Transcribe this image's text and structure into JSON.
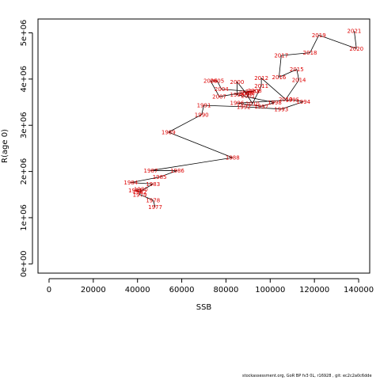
{
  "chart_data": {
    "type": "scatter",
    "title": "",
    "xlabel": "SSB",
    "ylabel": "R(age 0)",
    "xlim": [
      -5000,
      145000
    ],
    "ylim": [
      -200000,
      5300000
    ],
    "x_ticks": [
      0,
      20000,
      40000,
      60000,
      80000,
      100000,
      120000,
      140000
    ],
    "x_tick_labels": [
      "0",
      "20000",
      "40000",
      "60000",
      "80000",
      "100000",
      "120000",
      "140000"
    ],
    "y_ticks": [
      0,
      1000000,
      2000000,
      3000000,
      4000000,
      5000000
    ],
    "y_tick_labels": [
      "0e+00",
      "1e+06",
      "2e+06",
      "3e+06",
      "4e+06",
      "5e+06"
    ],
    "grid": false,
    "legend": "none",
    "connected": true,
    "point_color": "#dd0000",
    "line_color": "#000000",
    "points": [
      {
        "year": "1977",
        "x": 48000,
        "y": 1230000
      },
      {
        "year": "1978",
        "x": 47000,
        "y": 1380000
      },
      {
        "year": "1979",
        "x": 41000,
        "y": 1500000
      },
      {
        "year": "1980",
        "x": 41500,
        "y": 1620000
      },
      {
        "year": "1981",
        "x": 39000,
        "y": 1590000
      },
      {
        "year": "1982",
        "x": 41000,
        "y": 1560000
      },
      {
        "year": "1983",
        "x": 47000,
        "y": 1730000
      },
      {
        "year": "1984",
        "x": 37000,
        "y": 1760000
      },
      {
        "year": "1985",
        "x": 50000,
        "y": 1880000
      },
      {
        "year": "1986",
        "x": 58000,
        "y": 2020000
      },
      {
        "year": "1987",
        "x": 46000,
        "y": 2020000
      },
      {
        "year": "1988",
        "x": 83000,
        "y": 2300000
      },
      {
        "year": "1989",
        "x": 54000,
        "y": 2850000
      },
      {
        "year": "1990",
        "x": 69000,
        "y": 3230000
      },
      {
        "year": "1991",
        "x": 70000,
        "y": 3430000
      },
      {
        "year": "1992",
        "x": 88000,
        "y": 3400000
      },
      {
        "year": "1993",
        "x": 105000,
        "y": 3350000
      },
      {
        "year": "1994",
        "x": 115000,
        "y": 3510000
      },
      {
        "year": "1995",
        "x": 110000,
        "y": 3550000
      },
      {
        "year": "1996",
        "x": 85000,
        "y": 3480000
      },
      {
        "year": "1997",
        "x": 96000,
        "y": 3410000
      },
      {
        "year": "1998",
        "x": 102000,
        "y": 3490000
      },
      {
        "year": "1999",
        "x": 85000,
        "y": 3660000
      },
      {
        "year": "2000",
        "x": 85000,
        "y": 3940000
      },
      {
        "year": "2001",
        "x": 90000,
        "y": 3640000
      },
      {
        "year": "2002",
        "x": 90000,
        "y": 3710000
      },
      {
        "year": "2003",
        "x": 92000,
        "y": 3730000
      },
      {
        "year": "2004",
        "x": 78000,
        "y": 3780000
      },
      {
        "year": "2005",
        "x": 76000,
        "y": 3960000
      },
      {
        "year": "2006",
        "x": 73000,
        "y": 3960000
      },
      {
        "year": "2007",
        "x": 77000,
        "y": 3620000
      },
      {
        "year": "2008",
        "x": 93000,
        "y": 3750000
      },
      {
        "year": "2009",
        "x": 89000,
        "y": 3690000
      },
      {
        "year": "2010",
        "x": 92000,
        "y": 3470000
      },
      {
        "year": "2011",
        "x": 96000,
        "y": 3850000
      },
      {
        "year": "2012",
        "x": 96000,
        "y": 4020000
      },
      {
        "year": "2013",
        "x": 107000,
        "y": 3560000
      },
      {
        "year": "2014",
        "x": 113000,
        "y": 3980000
      },
      {
        "year": "2015",
        "x": 112000,
        "y": 4210000
      },
      {
        "year": "2016",
        "x": 104000,
        "y": 4040000
      },
      {
        "year": "2017",
        "x": 105000,
        "y": 4510000
      },
      {
        "year": "2018",
        "x": 118000,
        "y": 4570000
      },
      {
        "year": "2019",
        "x": 122000,
        "y": 4950000
      },
      {
        "year": "2020",
        "x": 139000,
        "y": 4660000
      },
      {
        "year": "2021",
        "x": 138000,
        "y": 5040000
      }
    ]
  },
  "footer_text": "stockassessment.org, GoR BP fv3 0L, r16928 , git: ec2c2a0c6dde"
}
